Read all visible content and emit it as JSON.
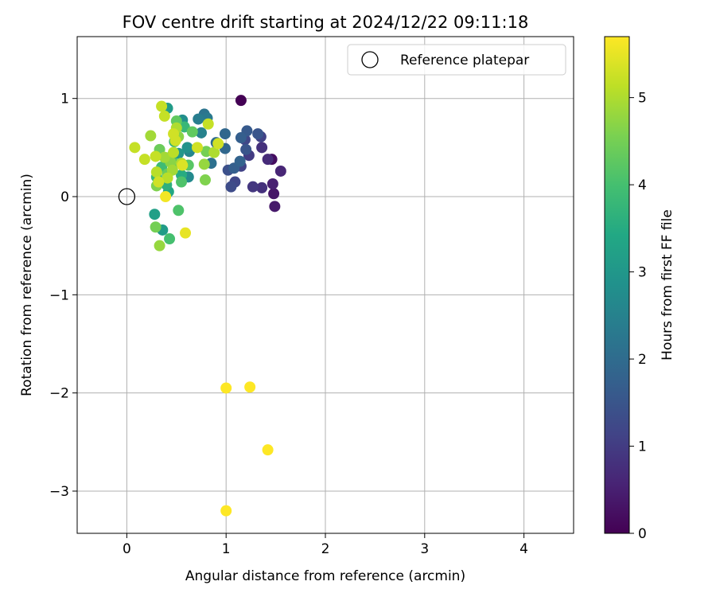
{
  "chart_data": {
    "type": "scatter",
    "title": "FOV centre drift starting at 2024/12/22 09:11:18",
    "xlabel": "Angular distance from reference (arcmin)",
    "ylabel": "Rotation from reference (arcmin)",
    "xlim": [
      -0.5,
      4.5
    ],
    "ylim": [
      -3.43,
      1.63
    ],
    "xticks": [
      0,
      1,
      2,
      3,
      4
    ],
    "xtick_labels": [
      "0",
      "1",
      "2",
      "3",
      "4"
    ],
    "yticks": [
      1,
      0,
      -1,
      -2,
      -3
    ],
    "ytick_labels": [
      "1",
      "0",
      "−1",
      "−2",
      "−3"
    ],
    "grid": true,
    "legend": {
      "position": "top-right",
      "entries": [
        {
          "label": "Reference platepar",
          "marker": "open-circle"
        }
      ]
    },
    "reference_point": {
      "x": 0,
      "y": 0
    },
    "colorbar": {
      "label": "Hours from first FF file",
      "colormap": "viridis",
      "range": [
        0,
        5.7
      ],
      "ticks": [
        0,
        1,
        2,
        3,
        4,
        5
      ],
      "tick_labels": [
        "0",
        "1",
        "2",
        "3",
        "4",
        "5"
      ]
    },
    "points": [
      {
        "x": 1.15,
        "y": 0.98,
        "h": 0.0
      },
      {
        "x": 1.46,
        "y": 0.38,
        "h": 0.2
      },
      {
        "x": 1.48,
        "y": 0.03,
        "h": 0.35
      },
      {
        "x": 1.49,
        "y": -0.1,
        "h": 0.4
      },
      {
        "x": 1.47,
        "y": 0.13,
        "h": 0.5
      },
      {
        "x": 1.55,
        "y": 0.26,
        "h": 0.6
      },
      {
        "x": 1.42,
        "y": 0.38,
        "h": 0.7
      },
      {
        "x": 1.36,
        "y": 0.5,
        "h": 0.8
      },
      {
        "x": 1.36,
        "y": 0.09,
        "h": 0.8
      },
      {
        "x": 1.27,
        "y": 0.1,
        "h": 0.9
      },
      {
        "x": 1.23,
        "y": 0.42,
        "h": 1.0
      },
      {
        "x": 1.15,
        "y": 0.31,
        "h": 1.1
      },
      {
        "x": 1.35,
        "y": 0.61,
        "h": 1.1
      },
      {
        "x": 1.19,
        "y": 0.58,
        "h": 1.2
      },
      {
        "x": 1.09,
        "y": 0.15,
        "h": 1.2
      },
      {
        "x": 1.05,
        "y": 0.1,
        "h": 1.3
      },
      {
        "x": 1.02,
        "y": 0.27,
        "h": 1.4
      },
      {
        "x": 1.2,
        "y": 0.48,
        "h": 1.5
      },
      {
        "x": 1.32,
        "y": 0.64,
        "h": 1.5
      },
      {
        "x": 1.21,
        "y": 0.67,
        "h": 1.6
      },
      {
        "x": 1.15,
        "y": 0.6,
        "h": 1.7
      },
      {
        "x": 1.08,
        "y": 0.29,
        "h": 1.7
      },
      {
        "x": 1.14,
        "y": 0.36,
        "h": 1.8
      },
      {
        "x": 0.99,
        "y": 0.49,
        "h": 1.9
      },
      {
        "x": 0.99,
        "y": 0.64,
        "h": 1.9
      },
      {
        "x": 0.9,
        "y": 0.55,
        "h": 2.0
      },
      {
        "x": 0.85,
        "y": 0.34,
        "h": 2.1
      },
      {
        "x": 0.78,
        "y": 0.84,
        "h": 2.2
      },
      {
        "x": 0.81,
        "y": 0.8,
        "h": 2.3
      },
      {
        "x": 0.72,
        "y": 0.79,
        "h": 2.4
      },
      {
        "x": 0.75,
        "y": 0.65,
        "h": 2.5
      },
      {
        "x": 0.63,
        "y": 0.46,
        "h": 2.6
      },
      {
        "x": 0.62,
        "y": 0.2,
        "h": 2.7
      },
      {
        "x": 0.56,
        "y": 0.78,
        "h": 2.8
      },
      {
        "x": 0.61,
        "y": 0.5,
        "h": 2.9
      },
      {
        "x": 0.52,
        "y": 0.44,
        "h": 3.0
      },
      {
        "x": 0.41,
        "y": 0.9,
        "h": 3.1
      },
      {
        "x": 0.36,
        "y": -0.34,
        "h": 3.1
      },
      {
        "x": 0.28,
        "y": -0.18,
        "h": 3.2
      },
      {
        "x": 0.45,
        "y": 0.41,
        "h": 3.3
      },
      {
        "x": 0.42,
        "y": 0.05,
        "h": 3.4
      },
      {
        "x": 0.55,
        "y": 0.22,
        "h": 3.5
      },
      {
        "x": 0.4,
        "y": 0.12,
        "h": 3.6
      },
      {
        "x": 0.48,
        "y": 0.56,
        "h": 3.7
      },
      {
        "x": 0.58,
        "y": 0.71,
        "h": 3.8
      },
      {
        "x": 0.3,
        "y": 0.2,
        "h": 3.8
      },
      {
        "x": 0.35,
        "y": 0.3,
        "h": 3.9
      },
      {
        "x": 0.43,
        "y": -0.43,
        "h": 4.0
      },
      {
        "x": 0.52,
        "y": -0.14,
        "h": 4.1
      },
      {
        "x": 0.55,
        "y": 0.15,
        "h": 4.1
      },
      {
        "x": 0.62,
        "y": 0.32,
        "h": 4.2
      },
      {
        "x": 0.47,
        "y": 0.34,
        "h": 4.2
      },
      {
        "x": 0.66,
        "y": 0.66,
        "h": 4.3
      },
      {
        "x": 0.5,
        "y": 0.77,
        "h": 4.3
      },
      {
        "x": 0.33,
        "y": 0.48,
        "h": 4.4
      },
      {
        "x": 0.41,
        "y": 0.23,
        "h": 4.4
      },
      {
        "x": 0.29,
        "y": -0.31,
        "h": 4.5
      },
      {
        "x": 0.8,
        "y": 0.46,
        "h": 4.5
      },
      {
        "x": 0.79,
        "y": 0.17,
        "h": 4.6
      },
      {
        "x": 0.3,
        "y": 0.11,
        "h": 4.6
      },
      {
        "x": 0.44,
        "y": 0.35,
        "h": 4.7
      },
      {
        "x": 0.52,
        "y": 0.61,
        "h": 4.7
      },
      {
        "x": 0.78,
        "y": 0.33,
        "h": 4.8
      },
      {
        "x": 0.33,
        "y": -0.5,
        "h": 4.8
      },
      {
        "x": 0.38,
        "y": 0.4,
        "h": 4.9
      },
      {
        "x": 0.46,
        "y": 0.27,
        "h": 4.9
      },
      {
        "x": 0.24,
        "y": 0.62,
        "h": 4.9
      },
      {
        "x": 0.55,
        "y": 0.34,
        "h": 5.0
      },
      {
        "x": 0.88,
        "y": 0.45,
        "h": 5.0
      },
      {
        "x": 0.5,
        "y": 0.7,
        "h": 5.0
      },
      {
        "x": 0.3,
        "y": 0.25,
        "h": 5.1
      },
      {
        "x": 0.41,
        "y": 0.19,
        "h": 5.1
      },
      {
        "x": 0.47,
        "y": 0.45,
        "h": 5.1
      },
      {
        "x": 0.35,
        "y": 0.92,
        "h": 5.2
      },
      {
        "x": 0.82,
        "y": 0.74,
        "h": 5.2
      },
      {
        "x": 0.08,
        "y": 0.5,
        "h": 5.2
      },
      {
        "x": 0.29,
        "y": 0.41,
        "h": 5.2
      },
      {
        "x": 0.18,
        "y": 0.38,
        "h": 5.2
      },
      {
        "x": 0.38,
        "y": 0.82,
        "h": 5.2
      },
      {
        "x": 0.71,
        "y": 0.5,
        "h": 5.3
      },
      {
        "x": 0.47,
        "y": 0.64,
        "h": 5.3
      },
      {
        "x": 0.32,
        "y": 0.15,
        "h": 5.3
      },
      {
        "x": 0.92,
        "y": 0.54,
        "h": 5.3
      },
      {
        "x": 0.49,
        "y": 0.57,
        "h": 5.3
      },
      {
        "x": 0.56,
        "y": 0.32,
        "h": 5.4
      },
      {
        "x": 0.59,
        "y": -0.37,
        "h": 5.5
      },
      {
        "x": 0.39,
        "y": 0.0,
        "h": 5.6
      },
      {
        "x": 1.0,
        "y": -1.95,
        "h": 5.7
      },
      {
        "x": 1.24,
        "y": -1.94,
        "h": 5.7
      },
      {
        "x": 1.42,
        "y": -2.58,
        "h": 5.7
      },
      {
        "x": 1.0,
        "y": -3.2,
        "h": 5.7
      }
    ]
  }
}
